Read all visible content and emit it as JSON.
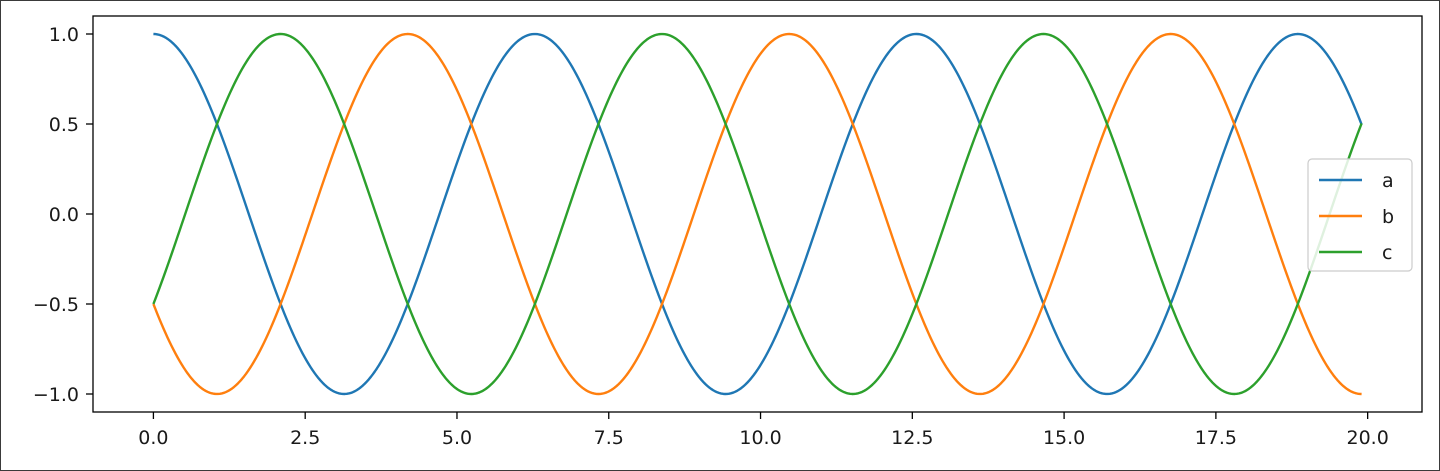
{
  "chart_data": {
    "type": "line",
    "title": "",
    "xlabel": "",
    "ylabel": "",
    "xlim": [
      -0.995,
      20.895
    ],
    "ylim": [
      -1.1,
      1.1
    ],
    "xticks": [
      0.0,
      2.5,
      5.0,
      7.5,
      10.0,
      12.5,
      15.0,
      17.5,
      20.0
    ],
    "xtick_labels": [
      "0.0",
      "2.5",
      "5.0",
      "7.5",
      "10.0",
      "12.5",
      "15.0",
      "17.5",
      "20.0"
    ],
    "yticks": [
      -1.0,
      -0.5,
      0.0,
      0.5,
      1.0
    ],
    "ytick_labels": [
      "−1.0",
      "−0.5",
      "0.0",
      "0.5",
      "1.0"
    ],
    "x_domain": [
      0,
      19.9
    ],
    "grid": false,
    "legend_position": "center-right",
    "series": [
      {
        "name": "a",
        "formula": "cos(x)",
        "phase": 0.0,
        "color": "#1f77b4"
      },
      {
        "name": "b",
        "formula": "cos(x + 2π/3)",
        "phase": 2.0944,
        "color": "#ff7f0e"
      },
      {
        "name": "c",
        "formula": "cos(x + 4π/3)",
        "phase": 4.1888,
        "color": "#2ca02c"
      }
    ]
  }
}
